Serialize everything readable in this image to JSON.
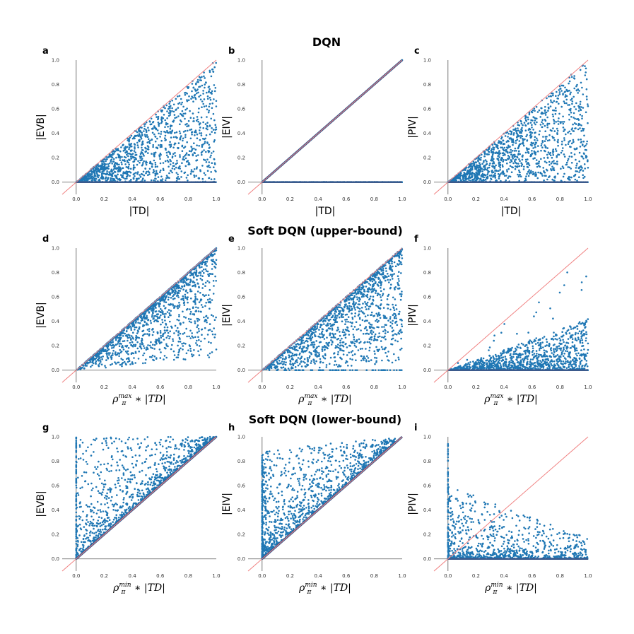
{
  "figure": {
    "row_titles": [
      "DQN",
      "Soft DQN (upper-bound)",
      "Soft DQN (lower-bound)"
    ]
  },
  "colors": {
    "points": "#1f77b4",
    "diagonal": "#f08080",
    "axes": "#555555",
    "dense_line": "#3b5a8c"
  },
  "chart_data": [
    {
      "panel": "a",
      "type": "scatter",
      "row": 0,
      "pattern": "uniform_below_diag",
      "xlabel": "|TD|",
      "ylabel": "|EVB|",
      "xticks": [
        "0.0",
        "0.2",
        "0.4",
        "0.6",
        "0.8",
        "1.0"
      ],
      "yticks": [
        "0.0",
        "0.2",
        "0.4",
        "0.6",
        "0.8",
        "1.0"
      ],
      "xlim": [
        -0.1,
        1.0
      ],
      "ylim": [
        -0.1,
        1.0
      ]
    },
    {
      "panel": "b",
      "type": "scatter",
      "row": 0,
      "pattern": "diag_and_zero",
      "xlabel": "|TD|",
      "ylabel": "|EIV|",
      "xticks": [
        "0.0",
        "0.2",
        "0.4",
        "0.6",
        "0.8",
        "1.0"
      ],
      "yticks": [
        "0.0",
        "0.2",
        "0.4",
        "0.6",
        "0.8",
        "1.0"
      ],
      "xlim": [
        -0.1,
        1.0
      ],
      "ylim": [
        -0.1,
        1.0
      ]
    },
    {
      "panel": "c",
      "type": "scatter",
      "row": 0,
      "pattern": "uniform_below_diag",
      "xlabel": "|TD|",
      "ylabel": "|PIV|",
      "xticks": [
        "0.0",
        "0.2",
        "0.4",
        "0.6",
        "0.8",
        "1.0"
      ],
      "yticks": [
        "0.0",
        "0.2",
        "0.4",
        "0.6",
        "0.8",
        "1.0"
      ],
      "xlim": [
        -0.1,
        1.0
      ],
      "ylim": [
        -0.1,
        1.0
      ]
    },
    {
      "panel": "d",
      "type": "scatter",
      "row": 1,
      "pattern": "near_diag_below",
      "xlabel_base": "ρ",
      "xlabel_sub": "π",
      "xlabel_sup": "max",
      "xlabel_tail": " ∗ |TD|",
      "ylabel": "|EVB|",
      "xticks": [
        "0.0",
        "0.2",
        "0.4",
        "0.6",
        "0.8",
        "1.0"
      ],
      "yticks": [
        "0.0",
        "0.2",
        "0.4",
        "0.6",
        "0.8",
        "1.0"
      ],
      "xlim": [
        -0.1,
        1.0
      ],
      "ylim": [
        -0.1,
        1.0
      ]
    },
    {
      "panel": "e",
      "type": "scatter",
      "row": 1,
      "pattern": "near_diag_below_wide",
      "xlabel_base": "ρ",
      "xlabel_sub": "π",
      "xlabel_sup": "max",
      "xlabel_tail": " ∗ |TD|",
      "ylabel": "|EIV|",
      "xticks": [
        "0.0",
        "0.2",
        "0.4",
        "0.6",
        "0.8",
        "1.0"
      ],
      "yticks": [
        "0.0",
        "0.2",
        "0.4",
        "0.6",
        "0.8",
        "1.0"
      ],
      "xlim": [
        -0.1,
        1.0
      ],
      "ylim": [
        -0.1,
        1.0
      ]
    },
    {
      "panel": "f",
      "type": "scatter",
      "row": 1,
      "pattern": "low_fan",
      "xlabel_base": "ρ",
      "xlabel_sub": "π",
      "xlabel_sup": "max",
      "xlabel_tail": " ∗ |TD|",
      "ylabel": "|PIV|",
      "xticks": [
        "0.0",
        "0.2",
        "0.4",
        "0.6",
        "0.8",
        "1.0"
      ],
      "yticks": [
        "0.0",
        "0.2",
        "0.4",
        "0.6",
        "0.8",
        "1.0"
      ],
      "xlim": [
        -0.1,
        1.0
      ],
      "ylim": [
        -0.1,
        1.0
      ]
    },
    {
      "panel": "g",
      "type": "scatter",
      "row": 2,
      "pattern": "above_diag",
      "xlabel_base": "ρ",
      "xlabel_sub": "π",
      "xlabel_sup": "min",
      "xlabel_tail": " ∗ |TD|",
      "ylabel": "|EVB|",
      "xticks": [
        "0.0",
        "0.2",
        "0.4",
        "0.6",
        "0.8",
        "1.0"
      ],
      "yticks": [
        "0.0",
        "0.2",
        "0.4",
        "0.6",
        "0.8",
        "1.0"
      ],
      "xlim": [
        -0.1,
        1.0
      ],
      "ylim": [
        -0.1,
        1.0
      ]
    },
    {
      "panel": "h",
      "type": "scatter",
      "row": 2,
      "pattern": "above_diag_left",
      "xlabel_base": "ρ",
      "xlabel_sub": "π",
      "xlabel_sup": "min",
      "xlabel_tail": " ∗ |TD|",
      "ylabel": "|EIV|",
      "xticks": [
        "0.0",
        "0.2",
        "0.4",
        "0.6",
        "0.8",
        "1.0"
      ],
      "yticks": [
        "0.0",
        "0.2",
        "0.4",
        "0.6",
        "0.8",
        "1.0"
      ],
      "xlim": [
        -0.1,
        1.0
      ],
      "ylim": [
        -0.1,
        1.0
      ]
    },
    {
      "panel": "i",
      "type": "scatter",
      "row": 2,
      "pattern": "decay_left",
      "xlabel_base": "ρ",
      "xlabel_sub": "π",
      "xlabel_sup": "min",
      "xlabel_tail": " ∗ |TD|",
      "ylabel": "|PIV|",
      "xticks": [
        "0.0",
        "0.2",
        "0.4",
        "0.6",
        "0.8",
        "1.0"
      ],
      "yticks": [
        "0.0",
        "0.2",
        "0.4",
        "0.6",
        "0.8",
        "1.0"
      ],
      "xlim": [
        -0.1,
        1.0
      ],
      "ylim": [
        -0.1,
        1.0
      ]
    }
  ]
}
